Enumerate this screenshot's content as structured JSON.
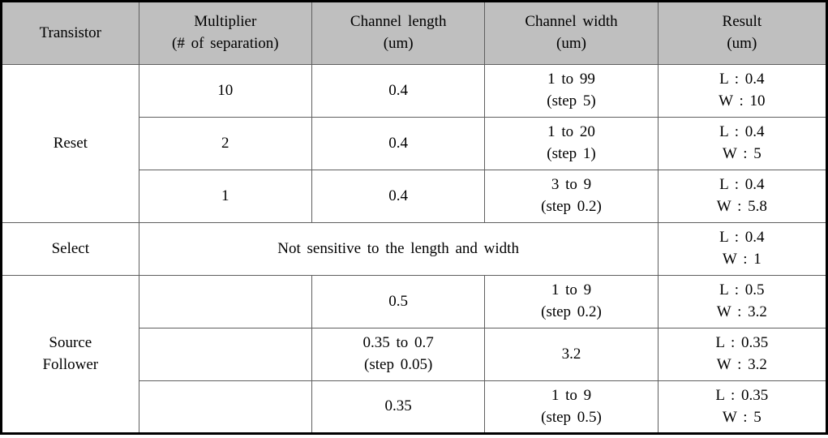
{
  "columns": [
    {
      "l1": "Transistor",
      "l2": ""
    },
    {
      "l1": "Multiplier",
      "l2": "(# of separation)"
    },
    {
      "l1": "Channel length",
      "l2": "(um)"
    },
    {
      "l1": "Channel width",
      "l2": "(um)"
    },
    {
      "l1": "Result",
      "l2": "(um)"
    }
  ],
  "reset": {
    "label": "Reset",
    "rows": [
      {
        "mult": "10",
        "len": "0.4",
        "w1": "1 to 99",
        "w2": "(step 5)",
        "r1": "L : 0.4",
        "r2": "W : 10"
      },
      {
        "mult": "2",
        "len": "0.4",
        "w1": "1 to 20",
        "w2": "(step 1)",
        "r1": "L : 0.4",
        "r2": "W : 5"
      },
      {
        "mult": "1",
        "len": "0.4",
        "w1": "3 to 9",
        "w2": "(step 0.2)",
        "r1": "L : 0.4",
        "r2": "W : 5.8"
      }
    ]
  },
  "select": {
    "label": "Select",
    "note": "Not sensitive to the length and width",
    "r1": "L : 0.4",
    "r2": "W : 1"
  },
  "source_follower": {
    "label_l1": "Source",
    "label_l2": "Follower",
    "rows": [
      {
        "mult": "",
        "len1": "0.5",
        "len2": "",
        "w1": "1 to 9",
        "w2": "(step 0.2)",
        "r1": "L : 0.5",
        "r2": "W : 3.2"
      },
      {
        "mult": "",
        "len1": "0.35 to 0.7",
        "len2": "(step 0.05)",
        "w1": "3.2",
        "w2": "",
        "r1": "L : 0.35",
        "r2": "W : 3.2"
      },
      {
        "mult": "",
        "len1": "0.35",
        "len2": "",
        "w1": "1 to 9",
        "w2": "(step 0.5)",
        "r1": "L : 0.35",
        "r2": "W : 5"
      }
    ]
  }
}
